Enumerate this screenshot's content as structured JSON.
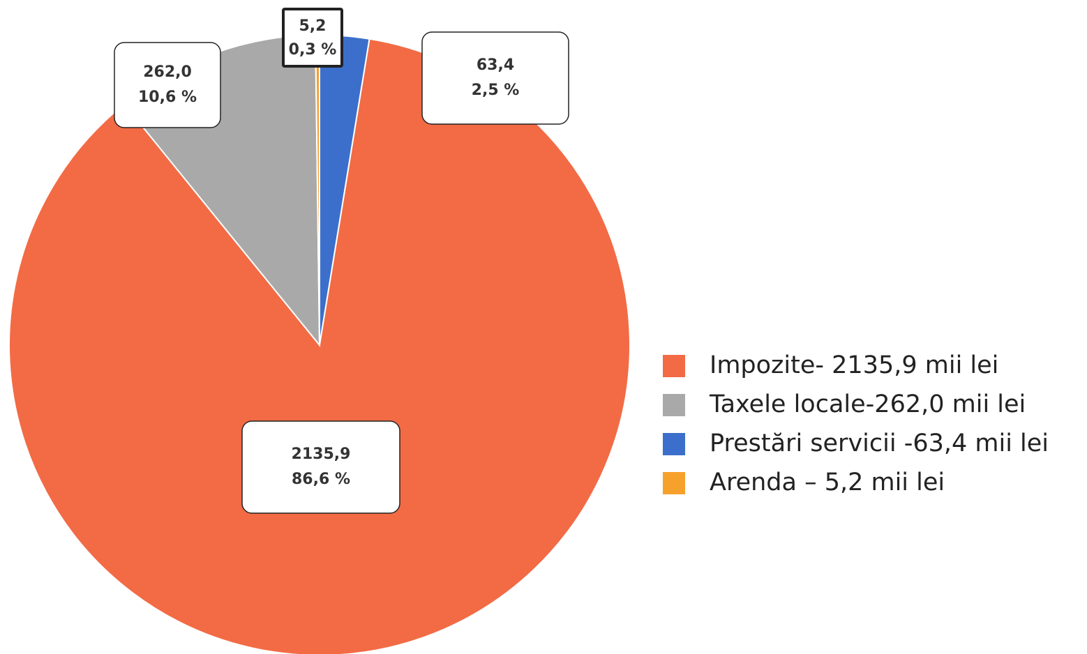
{
  "chart_data": {
    "type": "pie",
    "categories": [
      "Impozite- 2135,9 mii lei",
      "Taxele locale-262,0 mii lei",
      "Prestări servicii -63,4 mii lei",
      "Arenda – 5,2 mii lei"
    ],
    "values": [
      2135.9,
      262.0,
      63.4,
      5.2
    ],
    "value_labels": [
      "2135,9",
      "262,0",
      "63,4",
      "5,2"
    ],
    "percents": [
      86.6,
      10.6,
      2.5,
      0.3
    ],
    "percent_labels": [
      "86,6 %",
      "10,6 %",
      "2,5 %",
      "0,3 %"
    ],
    "colors": [
      "#f26b45",
      "#a9a9a9",
      "#3b6fcb",
      "#f7a12d"
    ],
    "legend": "right"
  }
}
